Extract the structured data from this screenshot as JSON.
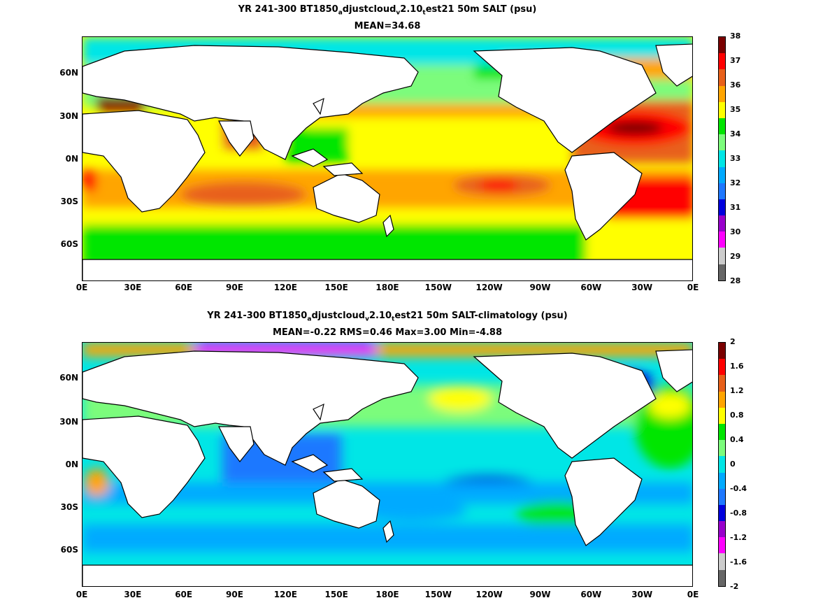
{
  "panels": [
    {
      "title1_parts": [
        "YR 241-300 BT1850",
        "a",
        "djustcloud",
        "v",
        "2.10",
        "t",
        "est21 50m SALT (psu)"
      ],
      "title2": "MEAN=34.68"
    },
    {
      "title1_parts": [
        "YR 241-300 BT1850",
        "a",
        "djustcloud",
        "v",
        "2.10",
        "t",
        "est21 50m SALT-climatology (psu)"
      ],
      "title2": "MEAN=-0.22   RMS=0.46   Max=3.00   Min=-4.88"
    }
  ],
  "axes": {
    "x_ticks": [
      "0E",
      "30E",
      "60E",
      "90E",
      "120E",
      "150E",
      "180E",
      "150W",
      "120W",
      "90W",
      "60W",
      "30W",
      "0E"
    ],
    "y_ticks": [
      "60N",
      "30N",
      "0N",
      "30S",
      "60S"
    ]
  },
  "colorbars": [
    {
      "labels": [
        "38",
        "37",
        "36",
        "35",
        "34",
        "33",
        "32",
        "31",
        "30",
        "29",
        "28"
      ],
      "colors": [
        "#7a0000",
        "#ff0000",
        "#e8601a",
        "#ffa500",
        "#ffff00",
        "#00e600",
        "#7cfc7c",
        "#00e6e6",
        "#00aaff",
        "#1e78ff",
        "#0000dd",
        "#9900cc",
        "#ff00ff",
        "#cccccc",
        "#666666"
      ]
    },
    {
      "labels": [
        "2",
        "1.6",
        "1.2",
        "0.8",
        "0.4",
        "0",
        "-0.4",
        "-0.8",
        "-1.2",
        "-1.6",
        "-2"
      ],
      "colors": [
        "#7a0000",
        "#ff0000",
        "#e8601a",
        "#ffa500",
        "#ffff00",
        "#00e600",
        "#7cfc7c",
        "#00e6e6",
        "#00aaff",
        "#1e78ff",
        "#0000dd",
        "#9900cc",
        "#ff00ff",
        "#cccccc",
        "#666666"
      ]
    }
  ],
  "chart_data": [
    {
      "type": "heatmap",
      "title": "YR 241-300 BT1850_adjustcloud_v2.10_test21 50m SALT (psu)",
      "subtitle": "MEAN=34.68",
      "field": "50m salinity",
      "units": "psu",
      "mean": 34.68,
      "color_range": [
        28,
        38
      ],
      "color_levels": [
        28,
        29,
        30,
        31,
        32,
        33,
        34,
        35,
        36,
        37,
        38
      ],
      "x_ticks": [
        "0E",
        "30E",
        "60E",
        "90E",
        "120E",
        "150E",
        "180E",
        "150W",
        "120W",
        "90W",
        "60W",
        "30W",
        "0E"
      ],
      "y_ticks": [
        "60N",
        "30N",
        "0N",
        "30S",
        "60S"
      ]
    },
    {
      "type": "heatmap",
      "title": "YR 241-300 BT1850_adjustcloud_v2.10_test21 50m SALT-climatology (psu)",
      "subtitle": "MEAN=-0.22   RMS=0.46   Max=3.00   Min=-4.88",
      "field": "50m salinity minus climatology",
      "units": "psu",
      "mean": -0.22,
      "rms": 0.46,
      "max": 3.0,
      "min": -4.88,
      "color_range": [
        -2,
        2
      ],
      "color_levels": [
        -2,
        -1.6,
        -1.2,
        -0.8,
        -0.4,
        0,
        0.4,
        0.8,
        1.2,
        1.6,
        2
      ],
      "x_ticks": [
        "0E",
        "30E",
        "60E",
        "90E",
        "120E",
        "150E",
        "180E",
        "150W",
        "120W",
        "90W",
        "60W",
        "30W",
        "0E"
      ],
      "y_ticks": [
        "60N",
        "30N",
        "0N",
        "30S",
        "60S"
      ]
    }
  ]
}
